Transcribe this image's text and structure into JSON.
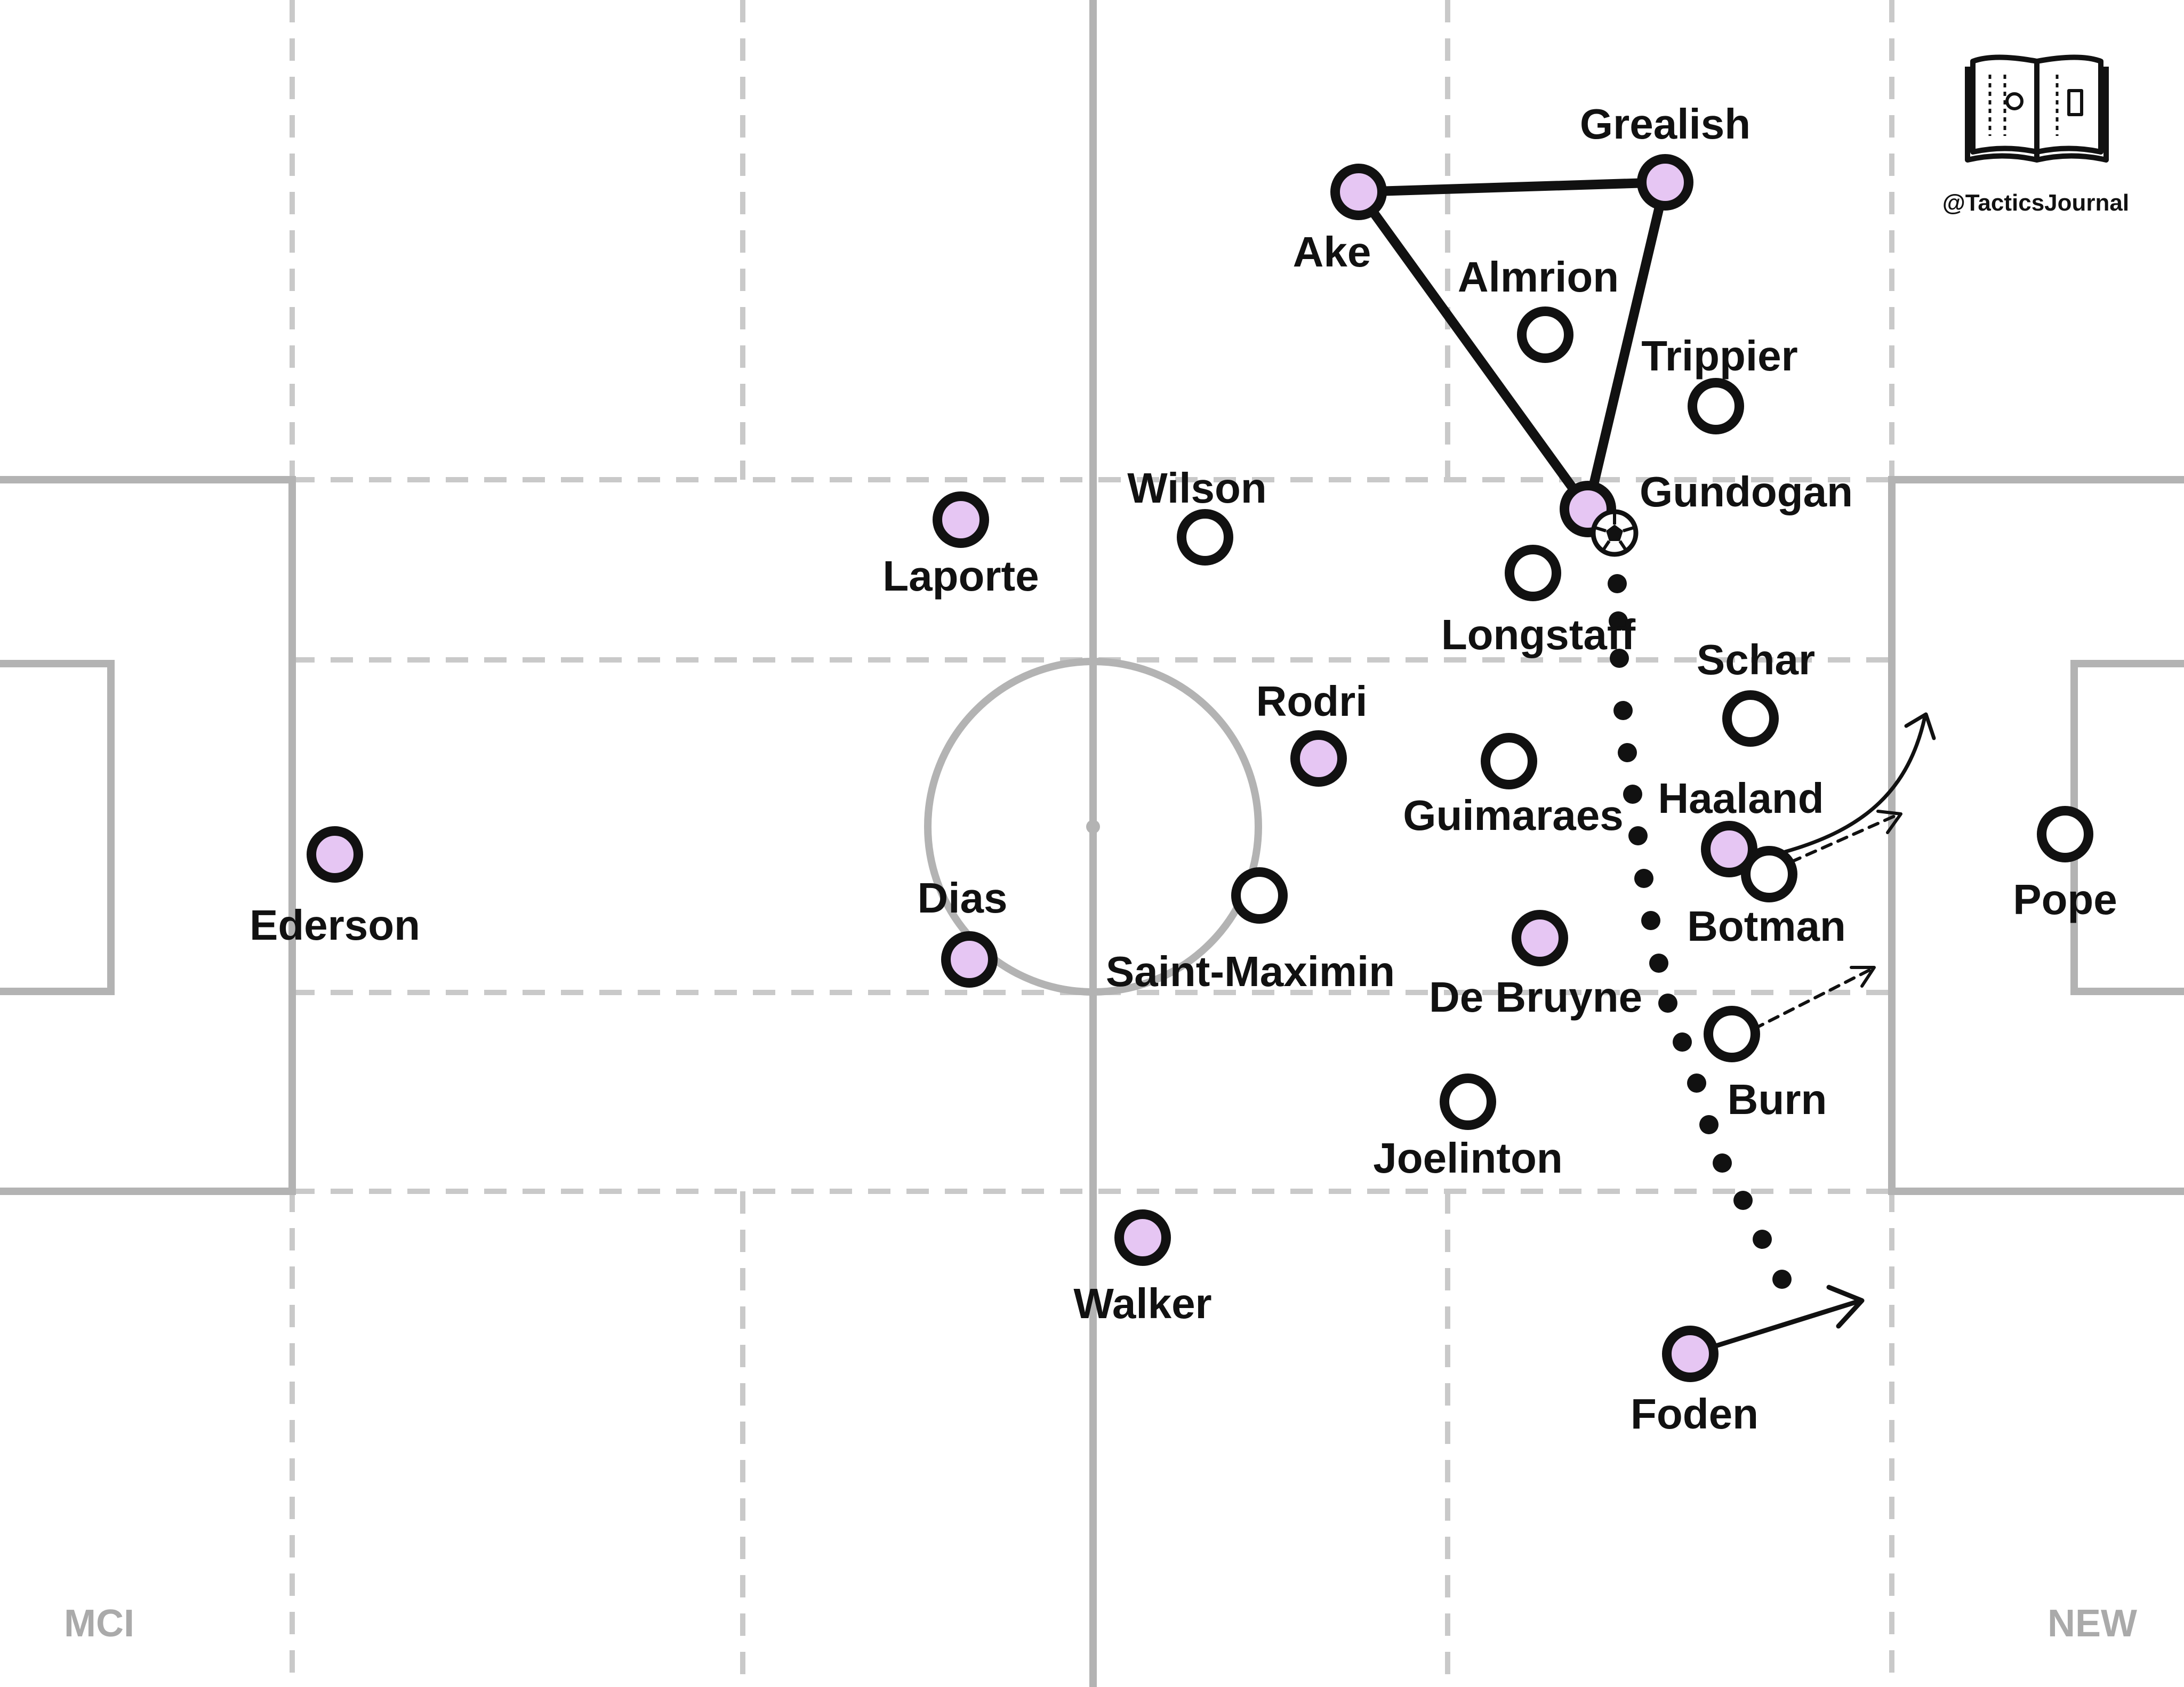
{
  "credit": "@TacticsJournal",
  "teams": {
    "home": "MCI",
    "away": "NEW"
  },
  "colors": {
    "home_fill": "#e6c6f3",
    "away_fill": "#ffffff",
    "line": "#111111",
    "pitch_line": "#b3b3b3",
    "grid": "#c9c9c9"
  },
  "players": {
    "ederson": "Ederson",
    "laporte": "Laporte",
    "dias": "Dias",
    "walker": "Walker",
    "rodri": "Rodri",
    "ake": "Ake",
    "grealish": "Grealish",
    "gundogan": "Gundogan",
    "de_bruyne": "De Bruyne",
    "haaland": "Haaland",
    "foden": "Foden",
    "wilson": "Wilson",
    "almrion": "Almrion",
    "trippier": "Trippier",
    "longstaff": "Longstaff",
    "schar": "Schar",
    "guimaraes": "Guimaraes",
    "saint_maximin": "Saint-Maximin",
    "botman": "Botman",
    "burn": "Burn",
    "joelinton": "Joelinton",
    "pope": "Pope"
  }
}
